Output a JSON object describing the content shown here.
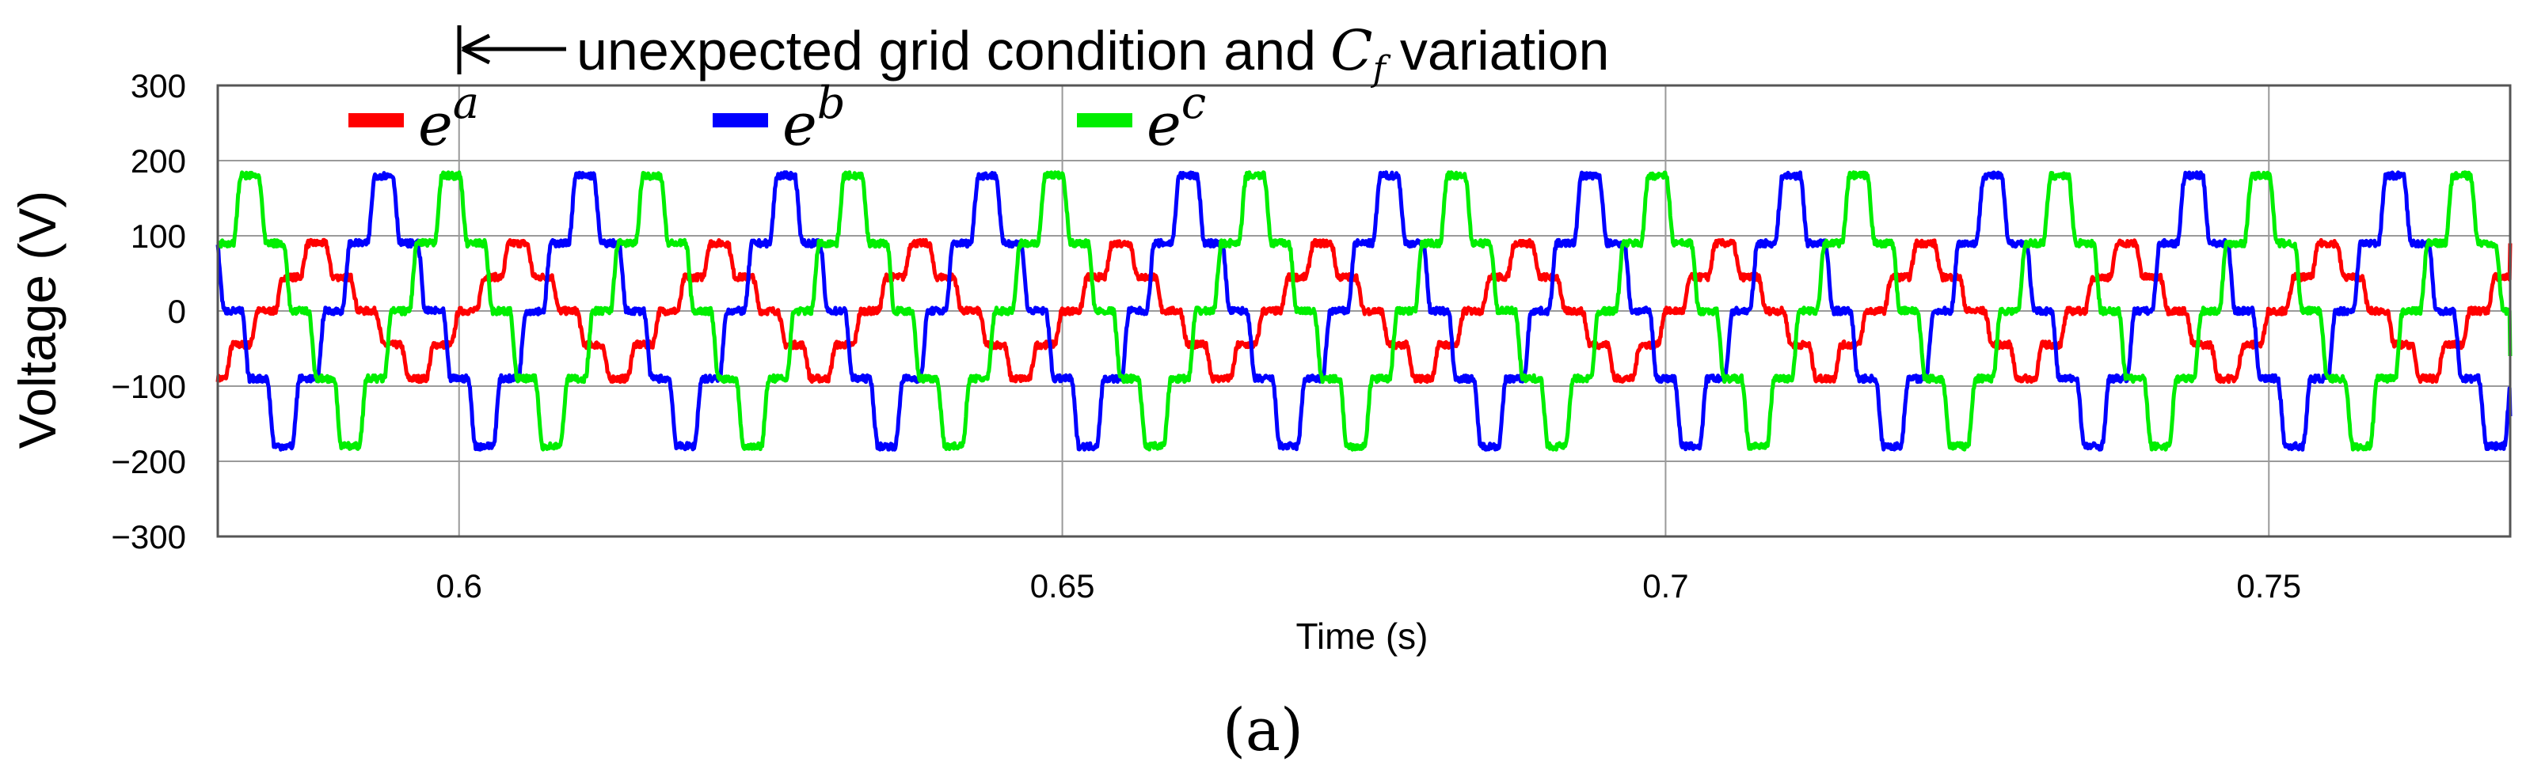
{
  "chart_data": {
    "type": "line",
    "title": "",
    "xlabel": "Time (s)",
    "ylabel": "Voltage (V)",
    "xlim": [
      0.58,
      0.77
    ],
    "ylim": [
      -300,
      300
    ],
    "xticks": [
      0.6,
      0.65,
      0.7,
      0.75
    ],
    "xtick_labels": [
      "0.6",
      "0.65",
      "0.7",
      "0.75"
    ],
    "yticks": [
      300,
      200,
      100,
      0,
      -100,
      -200,
      -300
    ],
    "ytick_labels": [
      "300",
      "200",
      "100",
      "0",
      "−100",
      "−200",
      "−300"
    ],
    "grid": true,
    "legend_position": "top",
    "frequency_hz": 60,
    "series": [
      {
        "name": "e",
        "sup": "a",
        "color": "#ff0000",
        "levels": [
          0,
          45,
          90,
          45,
          0,
          -45,
          -90,
          -45
        ],
        "phase_shift_deg": 0,
        "final_value": 90
      },
      {
        "name": "e",
        "sup": "b",
        "color": "#0000ff",
        "levels": [
          0,
          90,
          180,
          90,
          0,
          -90,
          -180,
          -90
        ],
        "phase_shift_deg": -120,
        "final_value": -140
      },
      {
        "name": "e",
        "sup": "c",
        "color": "#00ee00",
        "levels": [
          0,
          90,
          180,
          90,
          0,
          -90,
          -180,
          -90
        ],
        "phase_shift_deg": 120,
        "final_value": -60
      }
    ],
    "annotation": {
      "text": "unexpected grid condition and",
      "symbol": "C",
      "subscript": "f",
      "suffix": "variation",
      "x": 0.6
    }
  },
  "caption": "(a)"
}
